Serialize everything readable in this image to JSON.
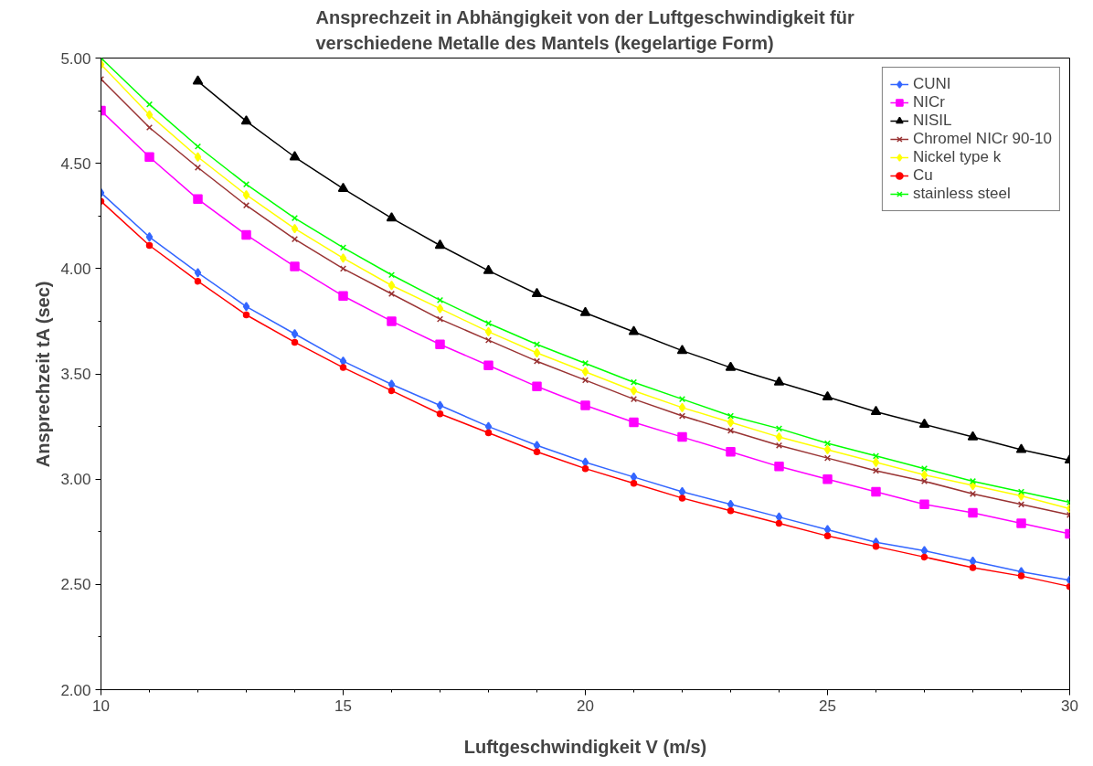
{
  "chart_data": {
    "type": "line",
    "title": "Ansprechzeit in Abhängigkeit von der Luftgeschwindigkeit für\nverschiedene Metalle des Mantels (kegelartige Form)",
    "xlabel": "Luftgeschwindigkeit V (m/s)",
    "ylabel": "Ansprechzeit tA (sec)",
    "x": [
      10,
      11,
      12,
      13,
      14,
      15,
      16,
      17,
      18,
      19,
      20,
      21,
      22,
      23,
      24,
      25,
      26,
      27,
      28,
      29,
      30
    ],
    "xlim": [
      10,
      30
    ],
    "xticks": [
      10,
      15,
      20,
      25,
      30
    ],
    "ylim": [
      2,
      5
    ],
    "yticks": [
      {
        "value": 2,
        "label": "2.00"
      },
      {
        "value": 2.5,
        "label": "2.50"
      },
      {
        "value": 3,
        "label": "3.00"
      },
      {
        "value": 3.5,
        "label": "3.50"
      },
      {
        "value": 4,
        "label": "4.00"
      },
      {
        "value": 4.5,
        "label": "4.50"
      },
      {
        "value": 5,
        "label": "5.00"
      }
    ],
    "grid": false,
    "legend": "top right",
    "line_style": "solid",
    "series": [
      {
        "name": "CUNI",
        "color": "#3366ff",
        "marker": "diamond",
        "values": [
          4.36,
          4.15,
          3.98,
          3.82,
          3.69,
          3.56,
          3.45,
          3.35,
          3.25,
          3.16,
          3.08,
          3.01,
          2.94,
          2.88,
          2.82,
          2.76,
          2.7,
          2.66,
          2.61,
          2.56,
          2.52
        ]
      },
      {
        "name": "NICr",
        "color": "#ff00ff",
        "marker": "square",
        "values": [
          4.75,
          4.53,
          4.33,
          4.16,
          4.01,
          3.87,
          3.75,
          3.64,
          3.54,
          3.44,
          3.35,
          3.27,
          3.2,
          3.13,
          3.06,
          3.0,
          2.94,
          2.88,
          2.84,
          2.79,
          2.74
        ]
      },
      {
        "name": "NISIL",
        "color": "#000000",
        "marker": "triangle",
        "x": [
          12,
          13,
          14,
          15,
          16,
          17,
          18,
          19,
          20,
          21,
          22,
          23,
          24,
          25,
          26,
          27,
          28,
          29,
          30
        ],
        "values": [
          4.89,
          4.7,
          4.53,
          4.38,
          4.24,
          4.11,
          3.99,
          3.88,
          3.79,
          3.7,
          3.61,
          3.53,
          3.46,
          3.39,
          3.32,
          3.26,
          3.2,
          3.14,
          3.09
        ]
      },
      {
        "name": "Chromel NICr 90-10",
        "color": "#993333",
        "marker": "cross",
        "values": [
          4.9,
          4.67,
          4.48,
          4.3,
          4.14,
          4.0,
          3.88,
          3.76,
          3.66,
          3.56,
          3.47,
          3.38,
          3.3,
          3.23,
          3.16,
          3.1,
          3.04,
          2.99,
          2.93,
          2.88,
          2.83
        ]
      },
      {
        "name": "Nickel type k",
        "color": "#ffff00",
        "marker": "diamond",
        "values": [
          4.97,
          4.73,
          4.53,
          4.35,
          4.19,
          4.05,
          3.92,
          3.81,
          3.7,
          3.6,
          3.51,
          3.42,
          3.34,
          3.27,
          3.2,
          3.14,
          3.08,
          3.02,
          2.97,
          2.92,
          2.86
        ]
      },
      {
        "name": "Cu",
        "color": "#ff0000",
        "marker": "circle",
        "values": [
          4.32,
          4.11,
          3.94,
          3.78,
          3.65,
          3.53,
          3.42,
          3.31,
          3.22,
          3.13,
          3.05,
          2.98,
          2.91,
          2.85,
          2.79,
          2.73,
          2.68,
          2.63,
          2.58,
          2.54,
          2.49
        ]
      },
      {
        "name": "stainless steel",
        "color": "#00ff00",
        "marker": "cross",
        "values": [
          5.0,
          4.78,
          4.58,
          4.4,
          4.24,
          4.1,
          3.97,
          3.85,
          3.74,
          3.64,
          3.55,
          3.46,
          3.38,
          3.3,
          3.24,
          3.17,
          3.11,
          3.05,
          2.99,
          2.94,
          2.89
        ]
      }
    ]
  }
}
